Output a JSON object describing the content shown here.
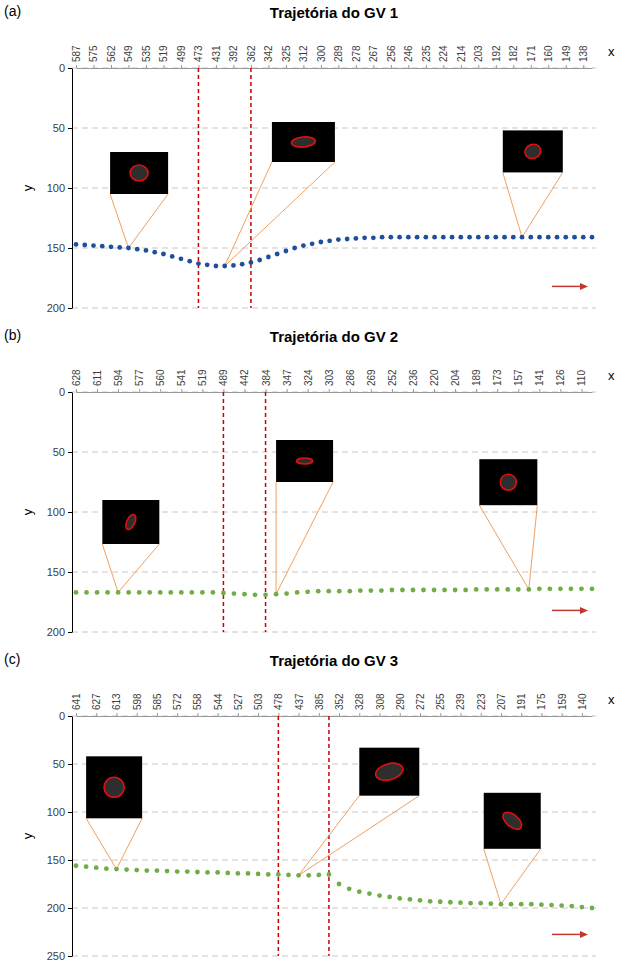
{
  "chart_data": [
    {
      "type": "scatter",
      "label": "(a)",
      "title": "Trajetória do GV 1",
      "x_label": "x",
      "y_label": "y",
      "categories": [
        "587",
        null,
        "575",
        null,
        "562",
        null,
        "549",
        null,
        "535",
        null,
        "519",
        null,
        "499",
        null,
        "473",
        null,
        "431",
        null,
        "392",
        null,
        "362",
        null,
        "342",
        null,
        "325",
        null,
        "312",
        null,
        "300",
        null,
        "289",
        null,
        "278",
        null,
        "267",
        null,
        "256",
        null,
        "246",
        null,
        "235",
        null,
        "224",
        null,
        "214",
        null,
        "203",
        null,
        "192",
        null,
        "182",
        null,
        "171",
        null,
        "160",
        null,
        "149",
        null,
        "138",
        null
      ],
      "values": [
        147,
        147.5,
        148,
        148.5,
        149,
        149.5,
        150,
        151,
        152,
        153.5,
        155,
        157,
        159,
        161,
        163,
        164,
        165,
        165,
        164.5,
        163.5,
        162,
        160,
        157.5,
        155,
        152.5,
        150,
        148,
        146.5,
        145,
        144,
        143,
        142.5,
        142,
        141.5,
        141.5,
        141,
        141,
        141,
        141,
        141,
        141,
        141,
        141,
        141,
        141,
        141,
        141,
        141,
        141,
        141,
        141,
        141,
        141,
        141,
        141,
        141,
        141,
        141,
        141,
        141
      ],
      "color": "#1f4e9c",
      "marker": "circle",
      "ylim": [
        0,
        200
      ],
      "yticks": [
        0,
        50,
        100,
        150,
        200
      ],
      "grid": true,
      "vlines": [
        14,
        20
      ]
    },
    {
      "type": "scatter",
      "label": "(b)",
      "title": "Trajetória do GV 2",
      "x_label": "x",
      "y_label": "y",
      "categories": [
        "628",
        null,
        "611",
        null,
        "594",
        null,
        "577",
        null,
        "560",
        null,
        "541",
        null,
        "519",
        null,
        "489",
        null,
        "442",
        null,
        "384",
        null,
        "347",
        null,
        "324",
        null,
        "303",
        null,
        "286",
        null,
        "269",
        null,
        "252",
        null,
        "236",
        null,
        "220",
        null,
        "204",
        null,
        "189",
        null,
        "173",
        null,
        "157",
        null,
        "141",
        null,
        "126",
        null,
        "110",
        null
      ],
      "values": [
        167,
        167,
        167,
        167,
        167,
        167,
        167,
        167,
        167,
        167,
        167,
        167,
        167,
        167,
        167.5,
        168,
        168.5,
        169,
        169,
        168.5,
        168,
        167,
        166.5,
        166,
        166,
        166,
        166,
        165.5,
        165.5,
        165.5,
        165,
        165,
        165,
        165,
        165,
        165,
        165,
        165,
        164.5,
        164.5,
        164.5,
        164.5,
        164.5,
        164.5,
        164,
        164,
        164,
        164,
        164,
        164
      ],
      "color": "#70ad47",
      "marker": "circle",
      "ylim": [
        0,
        200
      ],
      "yticks": [
        0,
        50,
        100,
        150,
        200
      ],
      "grid": true,
      "vlines": [
        14,
        18
      ]
    },
    {
      "type": "scatter",
      "label": "(c)",
      "title": "Trajetória do GV 3",
      "x_label": "x",
      "y_label": "y",
      "categories": [
        "641",
        null,
        "627",
        null,
        "613",
        null,
        "598",
        null,
        "585",
        null,
        "572",
        null,
        "558",
        null,
        "544",
        null,
        "527",
        null,
        "503",
        null,
        "478",
        null,
        "437",
        null,
        "385",
        null,
        "352",
        null,
        "328",
        null,
        "308",
        null,
        "290",
        null,
        "272",
        null,
        "255",
        null,
        "239",
        null,
        "223",
        null,
        "207",
        null,
        "191",
        null,
        "175",
        null,
        "159",
        null,
        "140",
        null
      ],
      "values": [
        156,
        157,
        158,
        159,
        159.5,
        160,
        160.5,
        161,
        161,
        161.5,
        162,
        162,
        162.5,
        163,
        163,
        163.5,
        164,
        164,
        164.5,
        165,
        165,
        165.5,
        166,
        166,
        165.5,
        165,
        175,
        180,
        183,
        185,
        187,
        188.5,
        190,
        191,
        192,
        193,
        193.5,
        194,
        194.5,
        195,
        195,
        195.5,
        196,
        196,
        196,
        196,
        196.5,
        197,
        197.5,
        198,
        199,
        200
      ],
      "color": "#70ad47",
      "marker": "circle",
      "ylim": [
        0,
        250
      ],
      "yticks": [
        0,
        50,
        100,
        150,
        200,
        250
      ],
      "grid": true,
      "vlines": [
        20,
        25
      ]
    }
  ]
}
